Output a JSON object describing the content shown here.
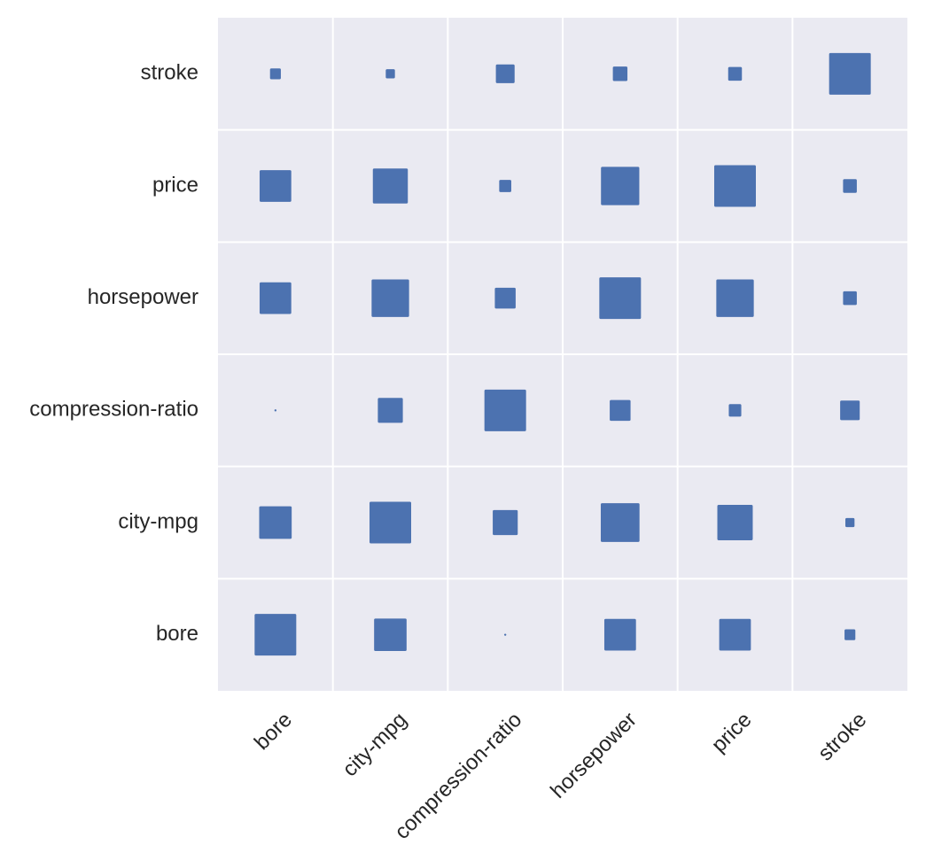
{
  "chart_data": {
    "type": "heatmap",
    "marker": "square",
    "x_labels": [
      "bore",
      "city-mpg",
      "compression-ratio",
      "horsepower",
      "price",
      "stroke"
    ],
    "y_labels": [
      "bore",
      "city-mpg",
      "compression-ratio",
      "horsepower",
      "price",
      "stroke"
    ],
    "size_note": "relative marker size (1.0 = diagonal)",
    "matrix": [
      [
        1.0,
        0.78,
        0.05,
        0.76,
        0.76,
        0.26
      ],
      [
        0.78,
        1.0,
        0.6,
        0.93,
        0.85,
        0.22
      ],
      [
        0.05,
        0.6,
        1.0,
        0.5,
        0.3,
        0.47
      ],
      [
        0.76,
        0.9,
        0.5,
        1.0,
        0.9,
        0.33
      ],
      [
        0.76,
        0.84,
        0.29,
        0.92,
        1.0,
        0.33
      ],
      [
        0.26,
        0.22,
        0.45,
        0.35,
        0.33,
        1.0
      ]
    ],
    "grid": true,
    "colors": {
      "marker": "#4c72b0",
      "plot_background": "#eaeaf2",
      "grid": "#ffffff",
      "text": "#262626"
    }
  }
}
